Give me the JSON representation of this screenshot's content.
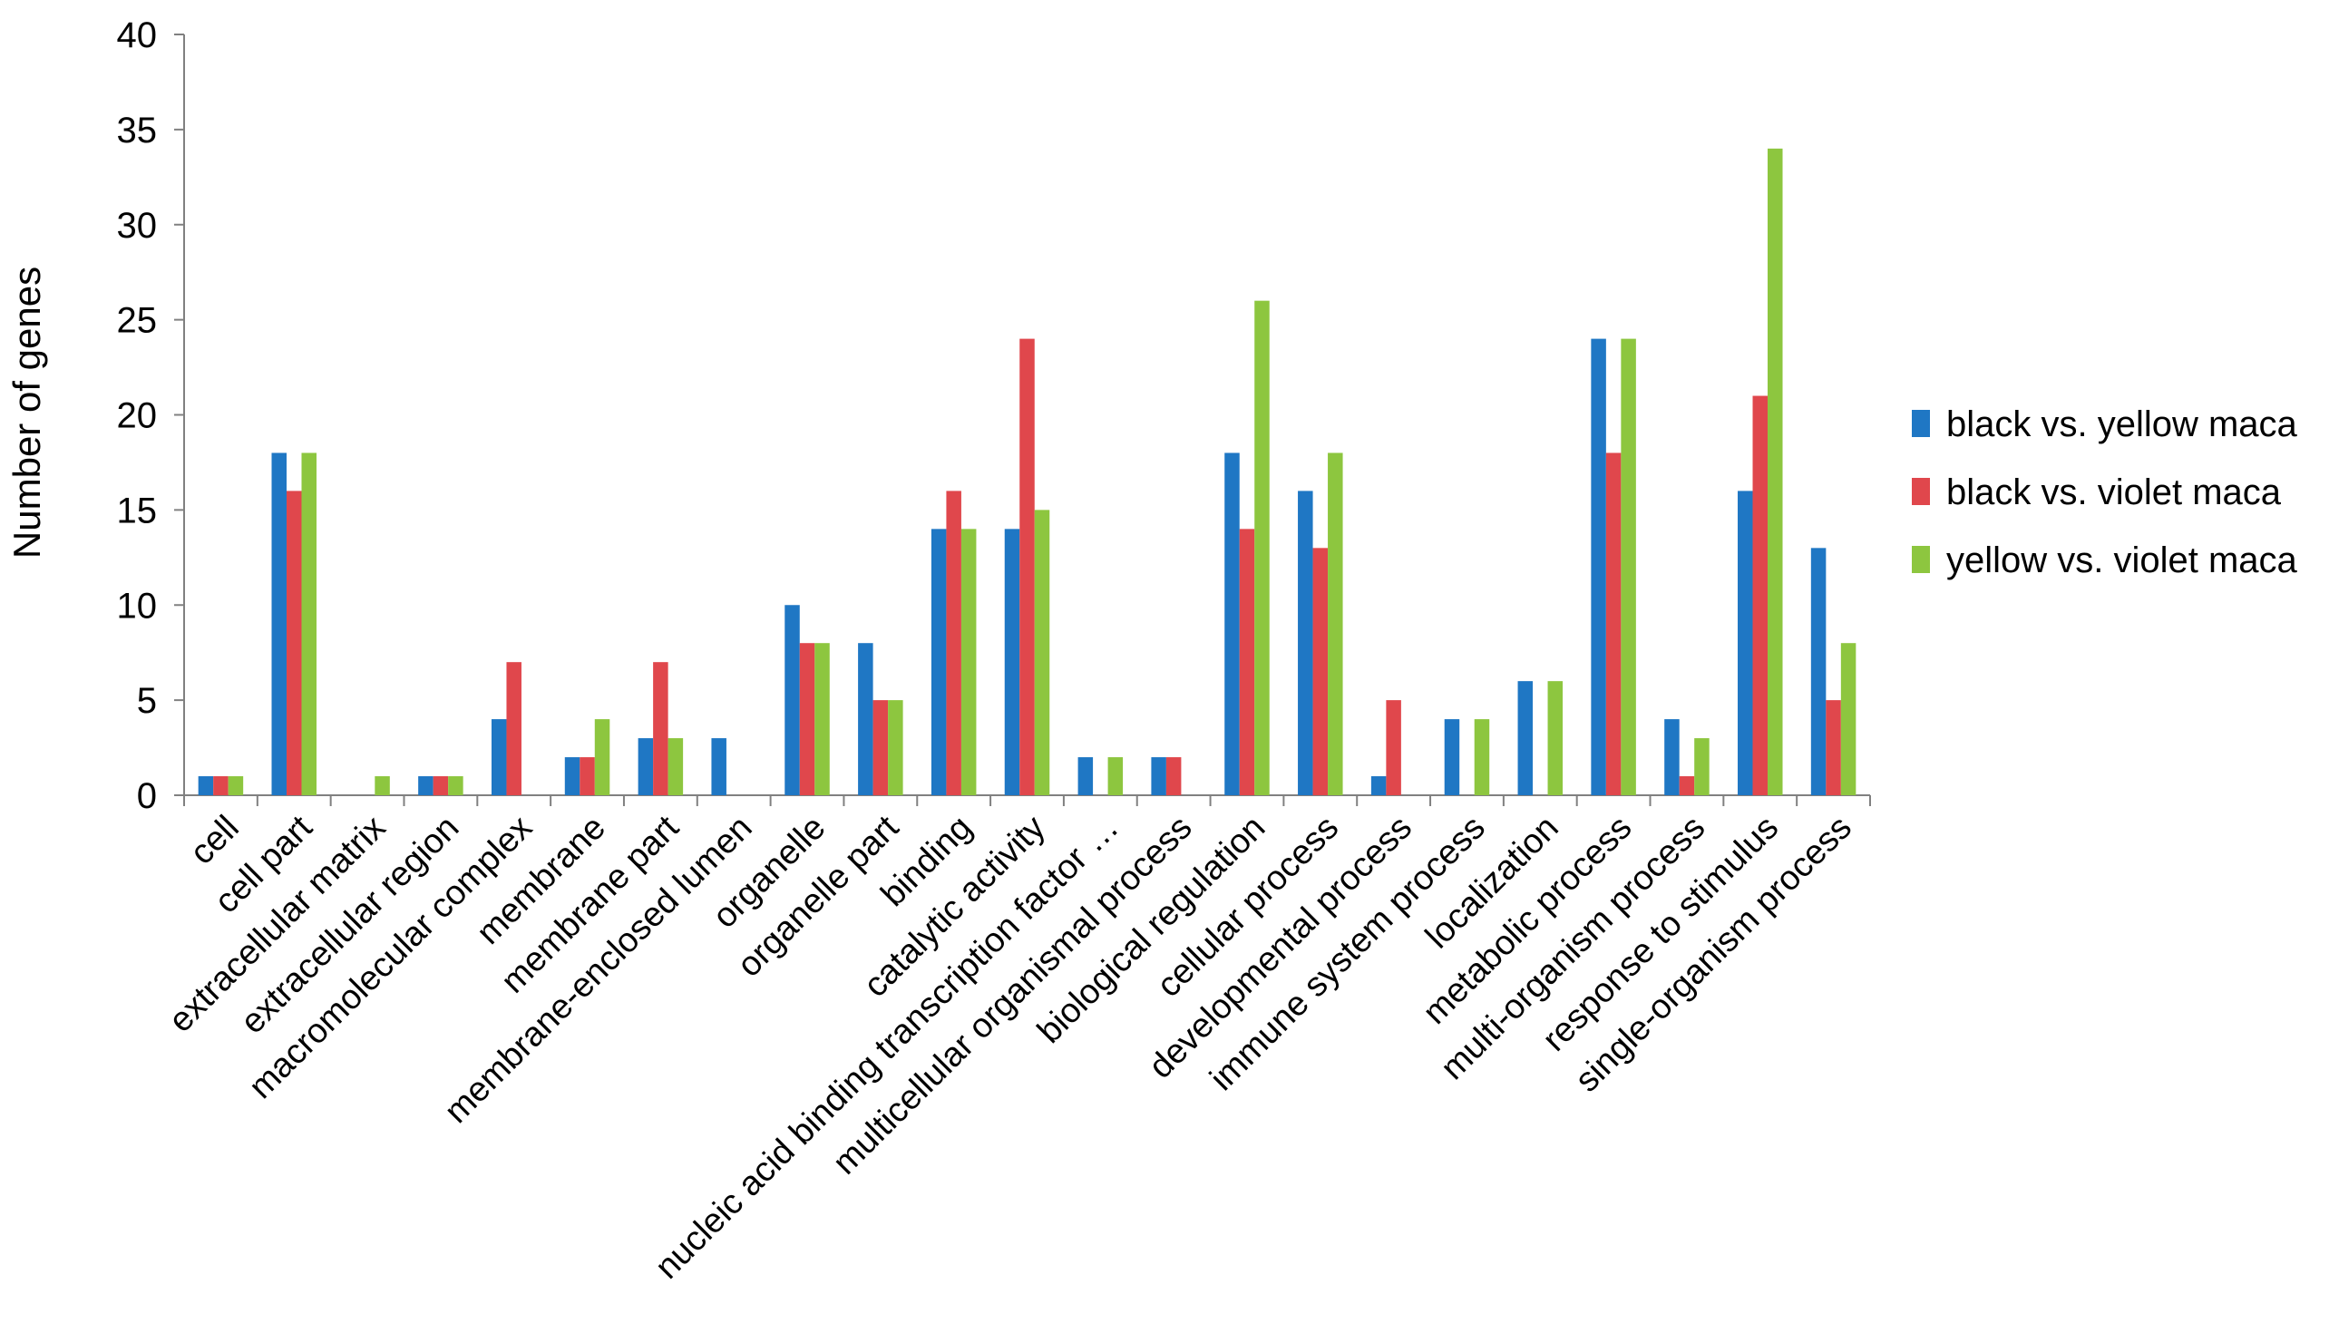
{
  "chart_data": {
    "type": "bar",
    "title": "",
    "xlabel": "",
    "ylabel": "Number of genes",
    "ylim": [
      0,
      40
    ],
    "ytick_step": 5,
    "grid": false,
    "legend_position": "right",
    "categories": [
      "cell",
      "cell part",
      "extracellular matrix",
      "extracellular region",
      "macromolecular complex",
      "membrane",
      "membrane part",
      "membrane-enclosed lumen",
      "organelle",
      "organelle part",
      "binding",
      "catalytic activity",
      "nucleic acid binding transcription factor …",
      "multicellular organismal process",
      "biological regulation",
      "cellular process",
      "developmental process",
      "immune system process",
      "localization",
      "metabolic process",
      "multi-organism process",
      "response to stimulus",
      "single-organism process"
    ],
    "series": [
      {
        "name": "black vs. yellow maca",
        "color": "#1f77c4",
        "values": [
          1,
          18,
          0,
          1,
          4,
          2,
          3,
          3,
          10,
          8,
          14,
          14,
          2,
          2,
          18,
          16,
          1,
          4,
          6,
          24,
          4,
          16,
          13
        ]
      },
      {
        "name": "black vs. violet maca",
        "color": "#e0474c",
        "values": [
          1,
          16,
          0,
          1,
          7,
          2,
          7,
          0,
          8,
          5,
          16,
          24,
          0,
          2,
          14,
          13,
          5,
          0,
          0,
          18,
          1,
          21,
          5
        ]
      },
      {
        "name": "yellow vs. violet maca",
        "color": "#8dc63f",
        "values": [
          1,
          18,
          1,
          1,
          0,
          4,
          3,
          0,
          8,
          5,
          14,
          15,
          2,
          0,
          26,
          18,
          0,
          4,
          6,
          24,
          3,
          34,
          8
        ]
      }
    ]
  }
}
